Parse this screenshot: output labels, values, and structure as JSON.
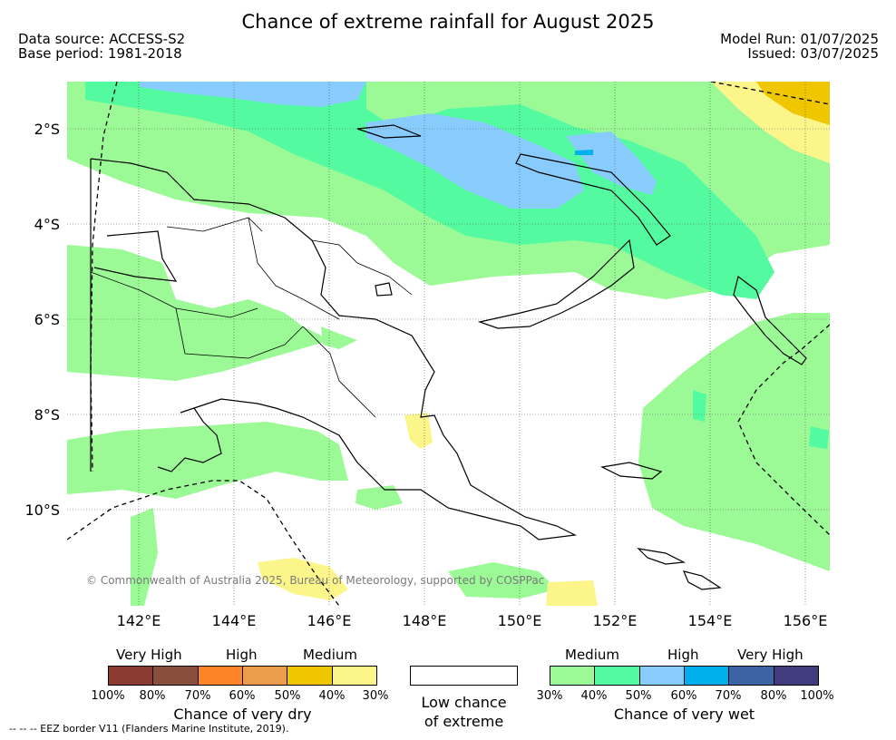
{
  "title": "Chance of extreme rainfall for August 2025",
  "meta": {
    "data_source": "Data source: ACCESS-S2",
    "base_period": "Base period: 1981-2018",
    "model_run": "Model Run: 01/07/2025",
    "issued": "Issued: 03/07/2025"
  },
  "axes": {
    "lat_labels": [
      "2°S",
      "4°S",
      "6°S",
      "8°S",
      "10°S"
    ],
    "lon_labels": [
      "142°E",
      "144°E",
      "146°E",
      "148°E",
      "150°E",
      "152°E",
      "154°E",
      "156°E"
    ]
  },
  "copyright": "© Commonwealth of Australia 2025, Bureau of Meteorology, supported by COSPPac",
  "legend": {
    "dry": {
      "group_labels": [
        "Very High",
        "High",
        "Medium"
      ],
      "colors": [
        "#8b3a32",
        "#8a4e3c",
        "#ff8427",
        "#eb9c4c",
        "#efc600",
        "#fcf58a"
      ],
      "ticks": [
        "100%",
        "80%",
        "70%",
        "60%",
        "50%",
        "40%",
        "30%"
      ],
      "caption": "Chance of very dry"
    },
    "neutral": {
      "color": "#ffffff",
      "caption_line1": "Low chance",
      "caption_line2": "of extreme"
    },
    "wet": {
      "group_labels": [
        "Medium",
        "High",
        "Very High"
      ],
      "colors": [
        "#9bfa96",
        "#54fa9f",
        "#87ccfc",
        "#00b0ec",
        "#3c64a4",
        "#403c7e"
      ],
      "ticks": [
        "30%",
        "40%",
        "50%",
        "60%",
        "70%",
        "80%",
        "100%"
      ],
      "caption": "Chance of very wet"
    }
  },
  "footnote": "-- -- -- EEZ border V11 (Flanders Marine Institute, 2019)."
}
